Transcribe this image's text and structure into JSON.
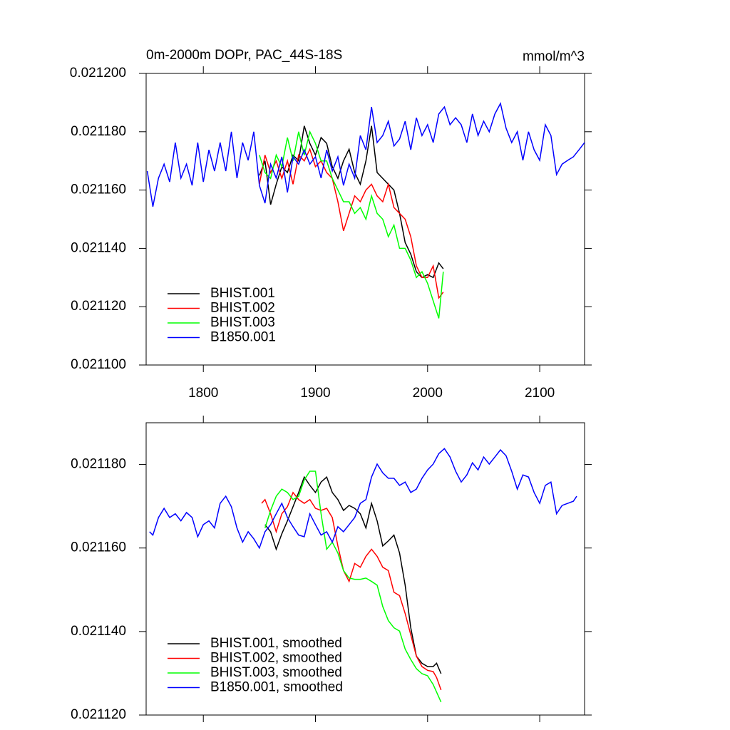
{
  "chart_data": [
    {
      "type": "line",
      "title": "0m-2000m DOPr, PAC_44S-18S",
      "units_label": "mmol/m^3",
      "xlim": [
        1749,
        2140
      ],
      "ylim": [
        0.0211,
        0.0212
      ],
      "xticks": [
        1800,
        1900,
        2000,
        2100
      ],
      "xtick_labels": true,
      "yticks": [
        {
          "value": 0.0211,
          "label": "0.021100"
        },
        {
          "value": 0.02112,
          "label": "0.021120"
        },
        {
          "value": 0.02114,
          "label": "0.021140"
        },
        {
          "value": 0.02116,
          "label": "0.021160"
        },
        {
          "value": 0.02118,
          "label": "0.021180"
        },
        {
          "value": 0.0212,
          "label": "0.021200"
        }
      ],
      "legend": "lower left",
      "series": [
        {
          "name": "BHIST.001",
          "color": "#000000",
          "x": [
            1850,
            1855,
            1860,
            1865,
            1870,
            1875,
            1880,
            1885,
            1890,
            1895,
            1900,
            1905,
            1910,
            1915,
            1920,
            1925,
            1930,
            1935,
            1940,
            1945,
            1950,
            1955,
            1960,
            1965,
            1970,
            1975,
            1980,
            1985,
            1990,
            1995,
            2000,
            2005,
            2010,
            2014
          ],
          "values": [
            0.021165,
            0.02117,
            0.021155,
            0.021162,
            0.021168,
            0.021166,
            0.021172,
            0.02117,
            0.021182,
            0.021176,
            0.021172,
            0.021178,
            0.021176,
            0.021168,
            0.021164,
            0.02117,
            0.021174,
            0.021166,
            0.021162,
            0.02117,
            0.021182,
            0.021166,
            0.021164,
            0.021162,
            0.02116,
            0.021152,
            0.021142,
            0.021138,
            0.021132,
            0.02113,
            0.021131,
            0.02113,
            0.021135,
            0.021133
          ]
        },
        {
          "name": "BHIST.002",
          "color": "#ff0000",
          "x": [
            1850,
            1855,
            1860,
            1865,
            1870,
            1875,
            1880,
            1885,
            1890,
            1895,
            1900,
            1905,
            1910,
            1915,
            1920,
            1925,
            1930,
            1935,
            1940,
            1945,
            1950,
            1955,
            1960,
            1965,
            1970,
            1975,
            1980,
            1985,
            1990,
            1995,
            2000,
            2005,
            2010,
            2014
          ],
          "values": [
            0.021162,
            0.021172,
            0.021166,
            0.02117,
            0.021164,
            0.02117,
            0.021162,
            0.021172,
            0.02117,
            0.021174,
            0.021168,
            0.02117,
            0.021166,
            0.021164,
            0.021156,
            0.021146,
            0.021152,
            0.021158,
            0.021156,
            0.02116,
            0.021162,
            0.021158,
            0.021156,
            0.021162,
            0.021154,
            0.021152,
            0.02115,
            0.021144,
            0.021134,
            0.02113,
            0.02113,
            0.021134,
            0.021123,
            0.021125
          ]
        },
        {
          "name": "BHIST.003",
          "color": "#00ff00",
          "x": [
            1850,
            1855,
            1860,
            1865,
            1870,
            1875,
            1880,
            1885,
            1890,
            1895,
            1900,
            1905,
            1910,
            1915,
            1920,
            1925,
            1930,
            1935,
            1940,
            1945,
            1950,
            1955,
            1960,
            1965,
            1970,
            1975,
            1980,
            1985,
            1990,
            1995,
            2000,
            2005,
            2010,
            2014
          ],
          "values": [
            0.021172,
            0.021166,
            0.021164,
            0.021172,
            0.021168,
            0.021178,
            0.02117,
            0.02118,
            0.021172,
            0.02118,
            0.021176,
            0.02117,
            0.02117,
            0.021164,
            0.02116,
            0.021156,
            0.021156,
            0.021152,
            0.021154,
            0.02115,
            0.021158,
            0.021152,
            0.02115,
            0.021144,
            0.021148,
            0.02114,
            0.02114,
            0.021136,
            0.02113,
            0.021132,
            0.021128,
            0.021122,
            0.021116,
            0.021132
          ]
        },
        {
          "name": "B1850.001",
          "color": "#0000ff",
          "x": [
            1750,
            1755,
            1760,
            1765,
            1770,
            1775,
            1780,
            1785,
            1790,
            1795,
            1800,
            1805,
            1810,
            1815,
            1820,
            1825,
            1830,
            1835,
            1840,
            1845,
            1850,
            1855,
            1860,
            1865,
            1870,
            1875,
            1880,
            1885,
            1890,
            1895,
            1900,
            1905,
            1910,
            1915,
            1920,
            1925,
            1930,
            1935,
            1940,
            1945,
            1950,
            1955,
            1960,
            1965,
            1970,
            1975,
            1980,
            1985,
            1990,
            1995,
            2000,
            2005,
            2010,
            2015,
            2020,
            2025,
            2030,
            2035,
            2040,
            2045,
            2050,
            2055,
            2060,
            2065,
            2070,
            2075,
            2080,
            2085,
            2090,
            2095,
            2100,
            2105,
            2110,
            2115,
            2120,
            2125,
            2130,
            2135,
            2140
          ],
          "values": [
            0.0211665,
            0.0211543,
            0.0211641,
            0.0211689,
            0.0211628,
            0.0211763,
            0.0211641,
            0.0211689,
            0.0211616,
            0.0211763,
            0.0211628,
            0.0211738,
            0.0211665,
            0.0211763,
            0.0211665,
            0.02118,
            0.0211641,
            0.0211763,
            0.0211702,
            0.02118,
            0.0211616,
            0.0211555,
            0.0211689,
            0.0211641,
            0.0211714,
            0.0211592,
            0.0211714,
            0.0211689,
            0.0211738,
            0.0211689,
            0.0211714,
            0.0211641,
            0.0211738,
            0.0211665,
            0.0211714,
            0.0211616,
            0.0211689,
            0.0211641,
            0.0211787,
            0.0211738,
            0.0211885,
            0.0211763,
            0.0211787,
            0.0211836,
            0.0211751,
            0.0211775,
            0.0211836,
            0.0211738,
            0.0211848,
            0.0211787,
            0.0211824,
            0.0211763,
            0.0211861,
            0.0211885,
            0.0211824,
            0.0211848,
            0.0211824,
            0.0211763,
            0.0211861,
            0.0211787,
            0.0211836,
            0.02118,
            0.0211861,
            0.0211897,
            0.0211812,
            0.0211763,
            0.02118,
            0.0211702,
            0.02118,
            0.0211738,
            0.0211702,
            0.0211824,
            0.0211787,
            0.0211653,
            0.0211689,
            0.0211702,
            0.0211714,
            0.0211738,
            0.0211763
          ]
        }
      ]
    },
    {
      "type": "line",
      "xlim": [
        1749,
        2140
      ],
      "ylim": [
        0.02112,
        0.02119
      ],
      "xticks": [
        1800,
        1900,
        2000,
        2100
      ],
      "xtick_labels": false,
      "yticks": [
        {
          "value": 0.02112,
          "label": "0.021120"
        },
        {
          "value": 0.02114,
          "label": "0.021140"
        },
        {
          "value": 0.02116,
          "label": "0.021160"
        },
        {
          "value": 0.02118,
          "label": "0.021180"
        }
      ],
      "legend": "lower left",
      "series": [
        {
          "name": "BHIST.001, smoothed",
          "color": "#000000",
          "x": [
            1855,
            1860,
            1865,
            1870,
            1875,
            1880,
            1885,
            1890,
            1895,
            1900,
            1905,
            1910,
            1915,
            1920,
            1925,
            1930,
            1935,
            1940,
            1945,
            1950,
            1955,
            1960,
            1965,
            1970,
            1975,
            1980,
            1985,
            1990,
            1995,
            2000,
            2005,
            2008,
            2012
          ],
          "values": [
            0.0211656,
            0.0211639,
            0.0211597,
            0.0211634,
            0.0211665,
            0.0211699,
            0.0211733,
            0.021177,
            0.021175,
            0.0211733,
            0.0211758,
            0.021177,
            0.0211733,
            0.0211716,
            0.021169,
            0.0211702,
            0.0211695,
            0.0211682,
            0.0211648,
            0.0211707,
            0.0211665,
            0.0211605,
            0.0211617,
            0.0211631,
            0.0211588,
            0.0211511,
            0.0211409,
            0.0211341,
            0.0211324,
            0.0211316,
            0.0211316,
            0.0211324,
            0.0211299
          ]
        },
        {
          "name": "BHIST.002, smoothed",
          "color": "#ff0000",
          "x": [
            1852,
            1855,
            1860,
            1865,
            1870,
            1875,
            1880,
            1885,
            1890,
            1895,
            1900,
            1905,
            1910,
            1915,
            1920,
            1925,
            1930,
            1935,
            1940,
            1945,
            1950,
            1955,
            1960,
            1965,
            1970,
            1975,
            1980,
            1985,
            1990,
            1995,
            2000,
            2005,
            2008,
            2012
          ],
          "values": [
            0.0211707,
            0.0211716,
            0.0211682,
            0.0211639,
            0.0211682,
            0.0211699,
            0.0211733,
            0.0211716,
            0.0211707,
            0.0211716,
            0.0211695,
            0.021169,
            0.0211695,
            0.0211673,
            0.0211605,
            0.0211546,
            0.021152,
            0.0211563,
            0.0211554,
            0.021158,
            0.0211597,
            0.021158,
            0.0211554,
            0.0211546,
            0.0211494,
            0.0211486,
            0.0211443,
            0.0211392,
            0.0211341,
            0.0211316,
            0.0211307,
            0.0211304,
            0.021129,
            0.021126
          ]
        },
        {
          "name": "BHIST.003, smoothed",
          "color": "#00ff00",
          "x": [
            1855,
            1860,
            1865,
            1870,
            1875,
            1880,
            1885,
            1890,
            1895,
            1900,
            1905,
            1910,
            1915,
            1920,
            1925,
            1930,
            1935,
            1940,
            1945,
            1950,
            1955,
            1960,
            1965,
            1970,
            1975,
            1980,
            1985,
            1990,
            1995,
            2000,
            2005,
            2012
          ],
          "values": [
            0.0211648,
            0.021169,
            0.0211724,
            0.0211741,
            0.0211733,
            0.0211716,
            0.0211724,
            0.0211763,
            0.0211784,
            0.0211784,
            0.0211682,
            0.0211597,
            0.0211614,
            0.0211588,
            0.0211546,
            0.0211528,
            0.0211525,
            0.0211525,
            0.0211528,
            0.021152,
            0.0211511,
            0.021146,
            0.0211426,
            0.0211409,
            0.0211401,
            0.0211358,
            0.0211333,
            0.0211311,
            0.0211299,
            0.0211294,
            0.0211273,
            0.0211231
          ]
        },
        {
          "name": "B1850.001, smoothed",
          "color": "#0000ff",
          "x": [
            1752,
            1755,
            1760,
            1765,
            1770,
            1775,
            1780,
            1785,
            1790,
            1795,
            1800,
            1805,
            1810,
            1815,
            1820,
            1825,
            1830,
            1835,
            1840,
            1845,
            1850,
            1855,
            1860,
            1865,
            1870,
            1875,
            1880,
            1885,
            1890,
            1895,
            1900,
            1905,
            1910,
            1915,
            1920,
            1925,
            1930,
            1935,
            1940,
            1945,
            1950,
            1955,
            1960,
            1965,
            1970,
            1975,
            1980,
            1985,
            1990,
            1995,
            2000,
            2005,
            2010,
            2015,
            2020,
            2025,
            2030,
            2035,
            2040,
            2045,
            2050,
            2055,
            2060,
            2065,
            2070,
            2075,
            2080,
            2085,
            2090,
            2095,
            2100,
            2105,
            2110,
            2115,
            2120,
            2125,
            2130,
            2133
          ],
          "values": [
            0.0211639,
            0.0211631,
            0.0211673,
            0.0211695,
            0.0211673,
            0.0211682,
            0.0211665,
            0.0211685,
            0.0211673,
            0.0211627,
            0.0211656,
            0.0211665,
            0.0211648,
            0.0211707,
            0.0211724,
            0.0211699,
            0.0211648,
            0.0211614,
            0.0211639,
            0.0211622,
            0.02116,
            0.0211639,
            0.0211656,
            0.0211682,
            0.0211707,
            0.0211673,
            0.0211651,
            0.0211631,
            0.0211627,
            0.0211682,
            0.0211656,
            0.0211631,
            0.0211639,
            0.0211614,
            0.0211651,
            0.0211639,
            0.0211656,
            0.0211673,
            0.0211707,
            0.0211716,
            0.021177,
            0.0211801,
            0.021178,
            0.0211767,
            0.0211767,
            0.021175,
            0.0211758,
            0.0211733,
            0.0211741,
            0.0211767,
            0.0211787,
            0.0211801,
            0.0211826,
            0.0211838,
            0.0211818,
            0.0211784,
            0.0211758,
            0.0211775,
            0.0211804,
            0.0211787,
            0.0211818,
            0.0211801,
            0.0211818,
            0.0211835,
            0.0211821,
            0.0211784,
            0.0211741,
            0.0211775,
            0.021177,
            0.0211733,
            0.0211707,
            0.021175,
            0.0211758,
            0.0211682,
            0.0211702,
            0.0211707,
            0.0211712,
            0.0211724
          ]
        }
      ]
    }
  ]
}
